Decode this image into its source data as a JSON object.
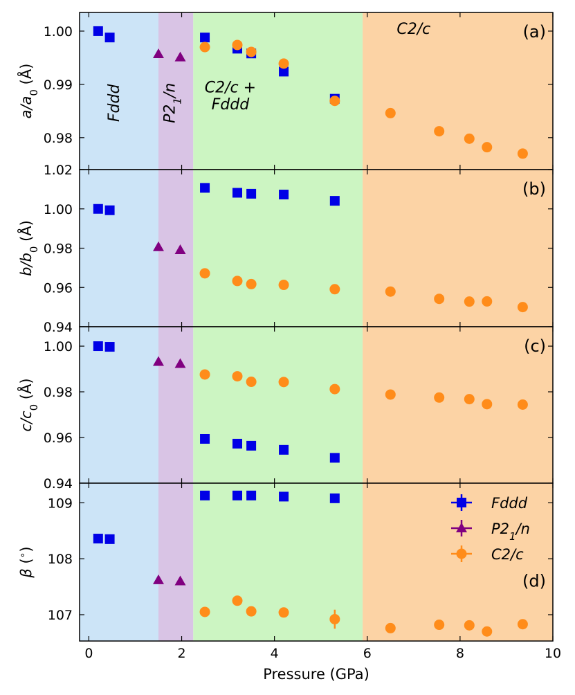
{
  "chart_data": {
    "type": "scatter",
    "xlabel": "Pressure (GPa)",
    "xlim": [
      -0.2,
      10
    ],
    "xticks": [
      0,
      2,
      4,
      6,
      8,
      10
    ],
    "xtick_labels": [
      "0",
      "2",
      "4",
      "6",
      "8",
      "10"
    ],
    "phase_regions": [
      {
        "name": "Fddd",
        "x_start": -0.2,
        "x_end": 1.5,
        "color": "#cce4f7"
      },
      {
        "name": "P2_1/n",
        "x_start": 1.5,
        "x_end": 2.25,
        "color": "#d9c4e5"
      },
      {
        "name": "C2/c + Fddd",
        "x_start": 2.25,
        "x_end": 5.9,
        "color": "#ccf5c2"
      },
      {
        "name": "C2/c",
        "x_start": 5.9,
        "x_end": 10,
        "color": "#fcd3a5"
      }
    ],
    "series_styles": [
      {
        "name": "Fddd",
        "marker": "square",
        "color": "#0000e6"
      },
      {
        "name": "P2₁/n",
        "marker": "triangle",
        "color": "#800080"
      },
      {
        "name": "C2/c",
        "marker": "circle",
        "color": "#ff8c1a"
      }
    ],
    "legend": {
      "entries": [
        "Fddd",
        "P2₁/n",
        "C2/c"
      ],
      "position": "top-right",
      "panel": "d"
    },
    "panels": [
      {
        "id": "a",
        "label": "(a)",
        "ylabel_prefix": "a/a",
        "ylabel_sub": "0",
        "ylabel_suffix": " (Å)",
        "ylim": [
          0.974,
          1.0035
        ],
        "yticks": [
          0.98,
          0.99,
          1.0
        ],
        "ytick_labels": [
          "0.98",
          "0.99",
          "1.00"
        ],
        "phase_annotations": [
          {
            "text": "Fddd",
            "x": 0.65,
            "y": 0.9865,
            "rotate": -90
          },
          {
            "text": "P2₁/n",
            "x": 1.85,
            "y": 0.9865,
            "rotate": -90
          },
          {
            "text": "C2/c +",
            "x": 3.05,
            "y": 0.9885,
            "rotate": 0
          },
          {
            "text": "Fddd",
            "x": 3.05,
            "y": 0.9853,
            "rotate": 0
          },
          {
            "text": "C2/c",
            "x": 7.0,
            "y": 0.9995,
            "rotate": 0
          }
        ],
        "series": [
          {
            "name": "Fddd",
            "x": [
              0.2,
              0.45,
              2.5,
              3.2,
              3.5,
              4.2,
              5.3
            ],
            "y": [
              1.0,
              0.9988,
              0.9988,
              0.9967,
              0.9958,
              0.9924,
              0.9873
            ],
            "err": [
              0,
              0,
              0,
              0,
              0,
              0,
              0
            ]
          },
          {
            "name": "P2₁/n",
            "x": [
              1.5,
              1.97
            ],
            "y": [
              0.9957,
              0.9951
            ],
            "err": [
              0,
              0
            ]
          },
          {
            "name": "C2/c",
            "x": [
              2.5,
              3.2,
              3.5,
              4.2,
              5.3,
              6.5,
              7.55,
              8.2,
              8.58,
              9.35
            ],
            "y": [
              0.997,
              0.9974,
              0.9961,
              0.9939,
              0.9869,
              0.9846,
              0.9812,
              0.9798,
              0.9782,
              0.977
            ],
            "err": [
              0,
              0.0008,
              0,
              0,
              0,
              0,
              0,
              0,
              0,
              0
            ]
          }
        ]
      },
      {
        "id": "b",
        "label": "(b)",
        "ylabel_prefix": "b/b",
        "ylabel_sub": "0",
        "ylabel_suffix": " (Å)",
        "ylim": [
          0.94,
          1.02
        ],
        "yticks": [
          0.94,
          0.96,
          0.98,
          1.0,
          1.02
        ],
        "ytick_labels": [
          "0.94",
          "0.96",
          "0.98",
          "1.00",
          "1.02"
        ],
        "phase_annotations": [],
        "series": [
          {
            "name": "Fddd",
            "x": [
              0.2,
              0.45,
              2.5,
              3.2,
              3.5,
              4.2,
              5.3
            ],
            "y": [
              1.0,
              0.9993,
              1.0107,
              1.0082,
              1.0077,
              1.0073,
              1.0041
            ],
            "err": [
              0,
              0,
              0,
              0,
              0,
              0,
              0
            ]
          },
          {
            "name": "P2₁/n",
            "x": [
              1.5,
              1.97
            ],
            "y": [
              0.9806,
              0.9791
            ],
            "err": [
              0,
              0
            ]
          },
          {
            "name": "C2/c",
            "x": [
              2.5,
              3.2,
              3.5,
              4.2,
              5.3,
              6.5,
              7.55,
              8.2,
              8.58,
              9.35
            ],
            "y": [
              0.9672,
              0.9633,
              0.9617,
              0.9613,
              0.9591,
              0.9579,
              0.9542,
              0.9528,
              0.9529,
              0.95
            ],
            "err": [
              0,
              0,
              0,
              0,
              0,
              0,
              0,
              0,
              0,
              0
            ]
          }
        ]
      },
      {
        "id": "c",
        "label": "(c)",
        "ylabel_prefix": "c/c",
        "ylabel_sub": "0",
        "ylabel_suffix": " (Å)",
        "ylim": [
          0.94,
          1.0085
        ],
        "yticks": [
          0.94,
          0.96,
          0.98,
          1.0
        ],
        "ytick_labels": [
          "0.94",
          "0.96",
          "0.98",
          "1.00"
        ],
        "phase_annotations": [],
        "series": [
          {
            "name": "Fddd",
            "x": [
              0.2,
              0.45,
              2.5,
              3.2,
              3.5,
              4.2,
              5.3
            ],
            "y": [
              1.0,
              0.9997,
              0.9594,
              0.9573,
              0.9564,
              0.9546,
              0.9511
            ],
            "err": [
              0,
              0,
              0,
              0,
              0,
              0,
              0
            ]
          },
          {
            "name": "P2₁/n",
            "x": [
              1.5,
              1.97
            ],
            "y": [
              0.9932,
              0.9923
            ],
            "err": [
              0,
              0
            ]
          },
          {
            "name": "C2/c",
            "x": [
              2.5,
              3.2,
              3.5,
              4.2,
              5.3,
              6.5,
              7.55,
              8.2,
              8.58,
              9.35
            ],
            "y": [
              0.9876,
              0.9868,
              0.9844,
              0.9843,
              0.9812,
              0.9788,
              0.9775,
              0.9768,
              0.9746,
              0.9744
            ],
            "err": [
              0,
              0,
              0,
              0,
              0,
              0,
              0,
              0,
              0,
              0
            ]
          }
        ]
      },
      {
        "id": "d",
        "label": "(d)",
        "ylabel_prefix": "β (",
        "ylabel_sub": "",
        "ylabel_sup": "∘",
        "ylabel_suffix": ")",
        "ylim": [
          106.53,
          109.35
        ],
        "yticks": [
          107,
          108,
          109
        ],
        "ytick_labels": [
          "107",
          "108",
          "109"
        ],
        "phase_annotations": [],
        "series": [
          {
            "name": "Fddd",
            "x": [
              0.2,
              0.45,
              2.5,
              3.2,
              3.5,
              4.2,
              5.3
            ],
            "y": [
              108.36,
              108.35,
              109.13,
              109.13,
              109.13,
              109.11,
              109.08
            ],
            "err": [
              0.04,
              0.04,
              0.04,
              0.04,
              0.04,
              0.04,
              0.04
            ]
          },
          {
            "name": "P2₁/n",
            "x": [
              1.5,
              1.97
            ],
            "y": [
              107.62,
              107.6
            ],
            "err": [
              0,
              0
            ]
          },
          {
            "name": "C2/c",
            "x": [
              2.5,
              3.2,
              3.5,
              4.2,
              5.3,
              6.5,
              7.55,
              8.2,
              8.58,
              9.35
            ],
            "y": [
              107.05,
              107.25,
              107.06,
              107.04,
              106.92,
              106.76,
              106.82,
              106.81,
              106.7,
              106.83
            ],
            "err": [
              0,
              0,
              0,
              0,
              0.17,
              0,
              0,
              0,
              0,
              0
            ]
          }
        ]
      }
    ]
  }
}
